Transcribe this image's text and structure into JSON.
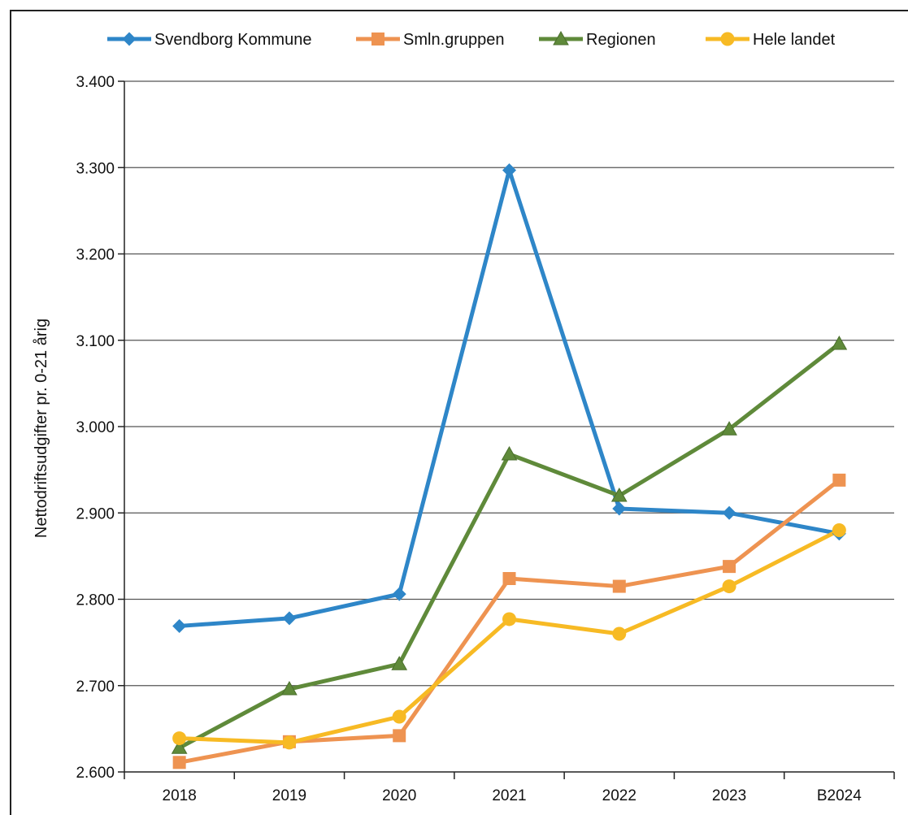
{
  "chart_data": {
    "type": "line",
    "categories": [
      "2018",
      "2019",
      "2020",
      "2021",
      "2022",
      "2023",
      "B2024"
    ],
    "ylabel": "Nettodriftsudgifter pr. 0-21 årig",
    "xlabel": "",
    "ylim": [
      2600,
      3400
    ],
    "yticks": [
      2600,
      2700,
      2800,
      2900,
      3000,
      3100,
      3200,
      3300,
      3400
    ],
    "ytick_labels": [
      "2.600",
      "2.700",
      "2.800",
      "2.900",
      "3.000",
      "3.100",
      "3.200",
      "3.300",
      "3.400"
    ],
    "grid": "horizontal",
    "legend_position": "top",
    "series": [
      {
        "name": "Svendborg Kommune",
        "color": "#2E86C8",
        "marker": "diamond",
        "values": [
          2769,
          2778,
          2806,
          3297,
          2905,
          2900,
          2876
        ]
      },
      {
        "name": "Smln.gruppen",
        "color": "#EE9351",
        "marker": "square",
        "values": [
          2611,
          2635,
          2642,
          2824,
          2815,
          2838,
          2938
        ]
      },
      {
        "name": "Regionen",
        "color": "#5F8A3A",
        "marker": "triangle",
        "values": [
          2628,
          2696,
          2725,
          2968,
          2920,
          2997,
          3096
        ]
      },
      {
        "name": "Hele landet",
        "color": "#F7BA24",
        "marker": "circle",
        "values": [
          2639,
          2634,
          2664,
          2777,
          2760,
          2815,
          2880
        ]
      }
    ]
  }
}
